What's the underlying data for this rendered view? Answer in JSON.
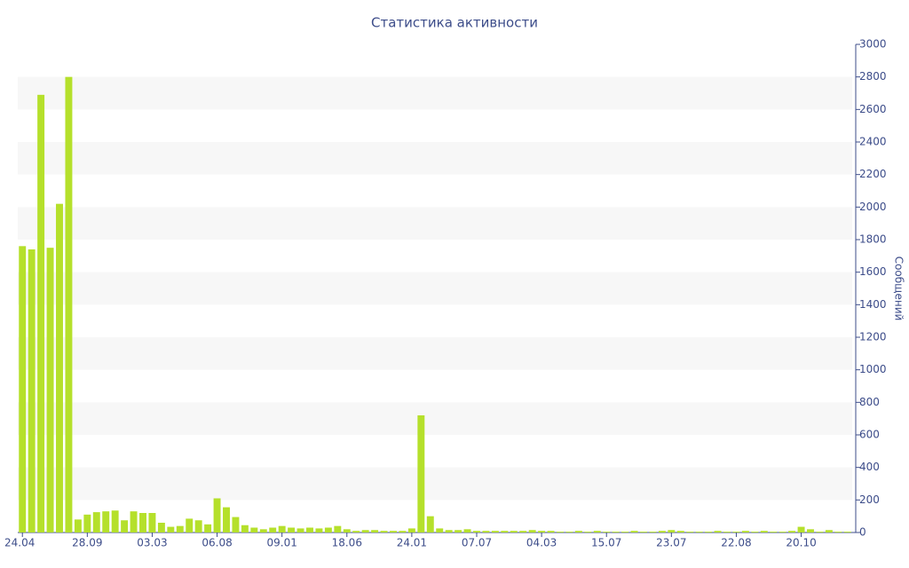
{
  "chart_data": {
    "type": "bar",
    "title": "Статистика активности",
    "y_label": "Сообщений",
    "categories": [
      "24.04",
      null,
      null,
      null,
      null,
      null,
      null,
      "28.09",
      null,
      null,
      null,
      null,
      null,
      null,
      "03.03",
      null,
      null,
      null,
      null,
      null,
      null,
      "06.08",
      null,
      null,
      null,
      null,
      null,
      null,
      "09.01",
      null,
      null,
      null,
      null,
      null,
      null,
      "18.06",
      null,
      null,
      null,
      null,
      null,
      null,
      "24.01",
      null,
      null,
      null,
      null,
      null,
      null,
      "07.07",
      null,
      null,
      null,
      null,
      null,
      null,
      "04.03",
      null,
      null,
      null,
      null,
      null,
      null,
      "15.07",
      null,
      null,
      null,
      null,
      null,
      null,
      "23.07",
      null,
      null,
      null,
      null,
      null,
      null,
      "22.08",
      null,
      null,
      null,
      null,
      null,
      null,
      "20.10",
      null,
      null,
      null,
      null,
      null
    ],
    "values": [
      1760,
      1740,
      2690,
      1750,
      2020,
      2800,
      80,
      110,
      125,
      130,
      135,
      75,
      130,
      120,
      120,
      60,
      35,
      40,
      85,
      75,
      50,
      210,
      155,
      95,
      45,
      30,
      20,
      30,
      40,
      30,
      25,
      30,
      25,
      30,
      40,
      20,
      10,
      15,
      15,
      10,
      10,
      10,
      25,
      720,
      100,
      25,
      15,
      15,
      20,
      10,
      10,
      10,
      10,
      10,
      10,
      15,
      10,
      10,
      5,
      5,
      10,
      5,
      10,
      5,
      5,
      5,
      10,
      5,
      5,
      10,
      15,
      10,
      5,
      5,
      5,
      10,
      5,
      5,
      10,
      5,
      10,
      5,
      5,
      10,
      35,
      20,
      5,
      15,
      5,
      5
    ],
    "color": "#b5e02b",
    "ylim": [
      0,
      3000
    ],
    "yticks": [
      0,
      200,
      400,
      600,
      800,
      1000,
      1200,
      1400,
      1600,
      1800,
      2000,
      2200,
      2400,
      2600,
      2800,
      3000
    ],
    "grid": "bands"
  }
}
